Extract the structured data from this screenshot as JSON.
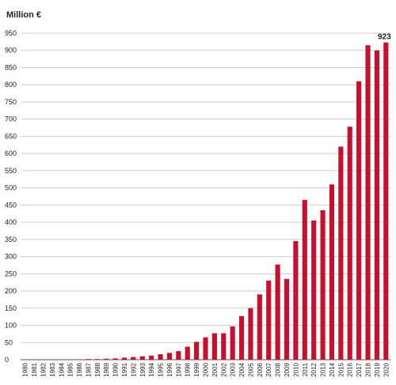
{
  "chart_data": {
    "type": "bar",
    "title": "Million €",
    "categories": [
      "1980",
      "1981",
      "1982",
      "1983",
      "1984",
      "1985",
      "1986",
      "1987",
      "1988",
      "1989",
      "1990",
      "1991",
      "1992",
      "1993",
      "1994",
      "1995",
      "1996",
      "1997",
      "1998",
      "1999",
      "2000",
      "2001",
      "2002",
      "2003",
      "2004",
      "2005",
      "2006",
      "2007",
      "2008",
      "2009",
      "2010",
      "2011",
      "2012",
      "2013",
      "2014",
      "2015",
      "2016",
      "2017",
      "2018",
      "2019",
      "2020"
    ],
    "values": [
      0.5,
      0.5,
      0.5,
      0.5,
      0.5,
      1,
      1,
      2,
      2,
      3,
      4,
      6,
      8,
      10,
      12,
      16,
      20,
      25,
      38,
      52,
      65,
      77,
      77,
      97,
      127,
      150,
      190,
      230,
      277,
      235,
      345,
      465,
      405,
      435,
      510,
      620,
      678,
      810,
      915,
      900,
      923
    ],
    "value_labels": [
      null,
      null,
      null,
      null,
      null,
      null,
      null,
      null,
      null,
      null,
      null,
      null,
      null,
      null,
      null,
      null,
      null,
      null,
      null,
      null,
      null,
      null,
      null,
      null,
      null,
      null,
      null,
      null,
      null,
      null,
      null,
      null,
      null,
      null,
      null,
      null,
      null,
      null,
      null,
      null,
      "923"
    ],
    "color": "#c8102e",
    "ylim": [
      0,
      950
    ],
    "yticks": [
      0,
      50,
      100,
      150,
      200,
      250,
      300,
      350,
      400,
      450,
      500,
      550,
      600,
      650,
      700,
      750,
      800,
      850,
      900,
      950
    ],
    "grid": true
  }
}
